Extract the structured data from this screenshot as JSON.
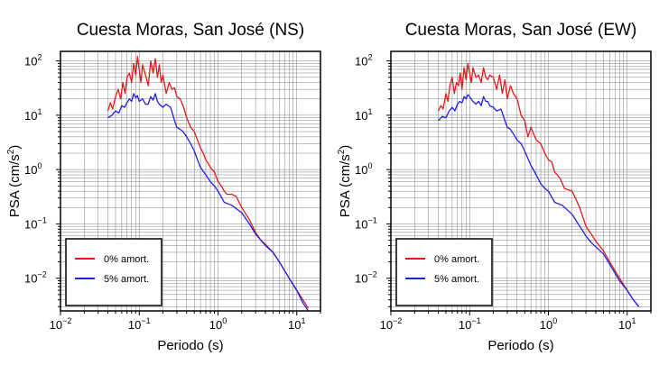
{
  "colors": {
    "red": "#e41a1c",
    "blue": "#1f1fe6",
    "grid": "#808080"
  },
  "chart_data": [
    {
      "type": "line",
      "title": "Cuesta Moras, San José (NS)",
      "xlabel": "Periodo (s)",
      "ylabel_main": "PSA (cm/s",
      "ylabel_sup": "2",
      "ylabel_end": ")",
      "xscale": "log",
      "yscale": "log",
      "xlim": [
        0.01,
        20
      ],
      "ylim": [
        0.0025,
        150
      ],
      "grid": true,
      "legend_position": "bottom-left",
      "xticks": [
        {
          "v": 0.01,
          "base": "10",
          "exp": "−2"
        },
        {
          "v": 0.1,
          "base": "10",
          "exp": "−1"
        },
        {
          "v": 1,
          "base": "10",
          "exp": "0"
        },
        {
          "v": 10,
          "base": "10",
          "exp": "1"
        }
      ],
      "yticks": [
        {
          "v": 0.01,
          "base": "10",
          "exp": "−2"
        },
        {
          "v": 0.1,
          "base": "10",
          "exp": "−1"
        },
        {
          "v": 1,
          "base": "10",
          "exp": "0"
        },
        {
          "v": 10,
          "base": "10",
          "exp": "1"
        },
        {
          "v": 100,
          "base": "10",
          "exp": "2"
        }
      ],
      "series": [
        {
          "name": "0% amort.",
          "color": "#e41a1c",
          "x": [
            0.04,
            0.043,
            0.046,
            0.05,
            0.054,
            0.058,
            0.062,
            0.066,
            0.07,
            0.075,
            0.08,
            0.085,
            0.09,
            0.095,
            0.1,
            0.105,
            0.11,
            0.12,
            0.13,
            0.14,
            0.15,
            0.16,
            0.17,
            0.18,
            0.19,
            0.2,
            0.22,
            0.24,
            0.26,
            0.28,
            0.3,
            0.33,
            0.36,
            0.4,
            0.45,
            0.5,
            0.55,
            0.6,
            0.65,
            0.7,
            0.75,
            0.8,
            0.9,
            1.0,
            1.1,
            1.2,
            1.3,
            1.5,
            1.7,
            2.0,
            2.5,
            3.0,
            3.5,
            4.0,
            5.0,
            6.0,
            8.0,
            10.0,
            12.0,
            14.0
          ],
          "y": [
            12,
            17,
            13,
            22,
            30,
            20,
            40,
            25,
            50,
            60,
            40,
            90,
            55,
            120,
            70,
            40,
            85,
            55,
            35,
            100,
            60,
            110,
            50,
            85,
            40,
            55,
            25,
            40,
            30,
            32,
            22,
            20,
            15,
            9,
            6,
            5,
            3.5,
            2.5,
            2,
            1.5,
            1.3,
            1.1,
            0.9,
            0.6,
            0.5,
            0.4,
            0.35,
            0.35,
            0.32,
            0.2,
            0.12,
            0.07,
            0.05,
            0.042,
            0.03,
            0.02,
            0.01,
            0.006,
            0.004,
            0.0028
          ]
        },
        {
          "name": "5% amort.",
          "color": "#1f1fe6",
          "x": [
            0.04,
            0.045,
            0.05,
            0.055,
            0.06,
            0.065,
            0.07,
            0.075,
            0.08,
            0.085,
            0.09,
            0.095,
            0.1,
            0.11,
            0.12,
            0.13,
            0.14,
            0.15,
            0.16,
            0.17,
            0.18,
            0.2,
            0.22,
            0.25,
            0.28,
            0.3,
            0.33,
            0.36,
            0.4,
            0.45,
            0.5,
            0.55,
            0.6,
            0.7,
            0.8,
            0.9,
            1.0,
            1.2,
            1.5,
            2.0,
            2.5,
            3.0,
            3.5,
            4.0,
            5.0,
            6.0,
            8.0,
            10.0,
            12.0,
            14.0
          ],
          "y": [
            9,
            10,
            12,
            11,
            15,
            14,
            17,
            20,
            18,
            25,
            21,
            23,
            18,
            20,
            16,
            16,
            22,
            19,
            25,
            18,
            16,
            14,
            16,
            14,
            8,
            6,
            5.5,
            5,
            4,
            3,
            2.2,
            1.5,
            1.1,
            0.8,
            0.6,
            0.5,
            0.4,
            0.25,
            0.22,
            0.16,
            0.1,
            0.065,
            0.05,
            0.04,
            0.03,
            0.02,
            0.01,
            0.006,
            0.0035,
            0.0025
          ]
        }
      ]
    },
    {
      "type": "line",
      "title": "Cuesta Moras, San José (EW)",
      "xlabel": "Periodo (s)",
      "ylabel_main": "PSA (cm/s",
      "ylabel_sup": "2",
      "ylabel_end": ")",
      "xscale": "log",
      "yscale": "log",
      "xlim": [
        0.01,
        20
      ],
      "ylim": [
        0.0025,
        150
      ],
      "grid": true,
      "legend_position": "bottom-left",
      "xticks": [
        {
          "v": 0.01,
          "base": "10",
          "exp": "−2"
        },
        {
          "v": 0.1,
          "base": "10",
          "exp": "−1"
        },
        {
          "v": 1,
          "base": "10",
          "exp": "0"
        },
        {
          "v": 10,
          "base": "10",
          "exp": "1"
        }
      ],
      "yticks": [
        {
          "v": 0.01,
          "base": "10",
          "exp": "−2"
        },
        {
          "v": 0.1,
          "base": "10",
          "exp": "−1"
        },
        {
          "v": 1,
          "base": "10",
          "exp": "0"
        },
        {
          "v": 10,
          "base": "10",
          "exp": "1"
        },
        {
          "v": 100,
          "base": "10",
          "exp": "2"
        }
      ],
      "series": [
        {
          "name": "0% amort.",
          "color": "#e41a1c",
          "x": [
            0.04,
            0.043,
            0.046,
            0.05,
            0.053,
            0.056,
            0.06,
            0.064,
            0.068,
            0.072,
            0.076,
            0.08,
            0.085,
            0.09,
            0.095,
            0.1,
            0.105,
            0.11,
            0.12,
            0.13,
            0.14,
            0.15,
            0.16,
            0.17,
            0.18,
            0.2,
            0.22,
            0.24,
            0.26,
            0.28,
            0.3,
            0.33,
            0.36,
            0.4,
            0.45,
            0.5,
            0.55,
            0.6,
            0.7,
            0.8,
            0.9,
            1.0,
            1.1,
            1.2,
            1.4,
            1.6,
            2.0,
            2.5,
            3.0,
            3.5,
            4.0,
            5.0,
            6.0,
            8.0,
            10.0,
            12.0,
            14.0
          ],
          "y": [
            12,
            15,
            13,
            25,
            18,
            35,
            50,
            25,
            40,
            35,
            60,
            30,
            75,
            45,
            90,
            60,
            40,
            75,
            50,
            55,
            40,
            75,
            50,
            45,
            55,
            50,
            30,
            55,
            25,
            45,
            20,
            35,
            25,
            20,
            10,
            8,
            4,
            6,
            3.5,
            3,
            2,
            1.5,
            1.4,
            0.9,
            0.7,
            0.45,
            0.4,
            0.2,
            0.09,
            0.065,
            0.048,
            0.032,
            0.02,
            0.01,
            0.006,
            0.004,
            0.003
          ]
        },
        {
          "name": "5% amort.",
          "color": "#1f1fe6",
          "x": [
            0.04,
            0.045,
            0.05,
            0.055,
            0.06,
            0.065,
            0.07,
            0.075,
            0.08,
            0.085,
            0.09,
            0.095,
            0.1,
            0.11,
            0.12,
            0.13,
            0.14,
            0.15,
            0.16,
            0.17,
            0.18,
            0.2,
            0.22,
            0.25,
            0.28,
            0.3,
            0.33,
            0.36,
            0.4,
            0.45,
            0.5,
            0.55,
            0.6,
            0.7,
            0.8,
            0.9,
            1.0,
            1.2,
            1.5,
            2.0,
            2.5,
            3.0,
            3.5,
            4.0,
            5.0,
            6.0,
            8.0,
            10.0,
            12.0,
            14.0
          ],
          "y": [
            8,
            9.5,
            9,
            12,
            14,
            12,
            16,
            18,
            17,
            22,
            20,
            24,
            22,
            18,
            16,
            18,
            15,
            22,
            18,
            18,
            15,
            14,
            12,
            13,
            8,
            6,
            5.5,
            4.5,
            3.5,
            3,
            2.2,
            1.6,
            1.2,
            0.8,
            0.55,
            0.45,
            0.4,
            0.25,
            0.22,
            0.15,
            0.09,
            0.06,
            0.045,
            0.038,
            0.028,
            0.018,
            0.009,
            0.006,
            0.004,
            0.003
          ]
        }
      ]
    }
  ]
}
